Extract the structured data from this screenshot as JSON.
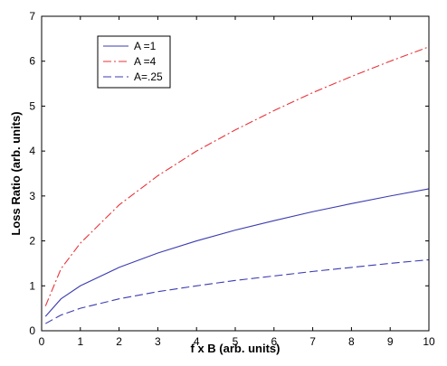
{
  "chart_data": {
    "type": "line",
    "xlabel": "f x B (arb. units)",
    "ylabel": "Loss Ratio (arb. units)",
    "xlim": [
      0,
      10
    ],
    "ylim": [
      0,
      7
    ],
    "x_ticks": [
      0,
      1,
      2,
      3,
      4,
      5,
      6,
      7,
      8,
      9,
      10
    ],
    "y_ticks": [
      0,
      1,
      2,
      3,
      4,
      5,
      6,
      7
    ],
    "grid": false,
    "legend_position": "top-left",
    "series": [
      {
        "name": "A =1",
        "color": "#3b3bb0",
        "style": "solid",
        "x": [
          0.1,
          0.5,
          1,
          2,
          3,
          4,
          5,
          6,
          7,
          8,
          9,
          10
        ],
        "y": [
          0.32,
          0.71,
          1.0,
          1.41,
          1.73,
          2.0,
          2.24,
          2.45,
          2.65,
          2.83,
          3.0,
          3.16
        ]
      },
      {
        "name": "A =4",
        "color": "#e8333a",
        "style": "dashdot",
        "x": [
          0.1,
          0.5,
          1,
          2,
          3,
          4,
          5,
          6,
          7,
          8,
          9,
          10
        ],
        "y": [
          0.55,
          1.38,
          1.95,
          2.8,
          3.45,
          4.0,
          4.47,
          4.9,
          5.3,
          5.66,
          6.0,
          6.32
        ]
      },
      {
        "name": "A=.25",
        "color": "#3b3bb0",
        "style": "dashed",
        "x": [
          0.1,
          0.5,
          1,
          2,
          3,
          4,
          5,
          6,
          7,
          8,
          9,
          10
        ],
        "y": [
          0.16,
          0.35,
          0.5,
          0.71,
          0.87,
          1.0,
          1.12,
          1.22,
          1.32,
          1.41,
          1.5,
          1.58
        ]
      }
    ]
  }
}
